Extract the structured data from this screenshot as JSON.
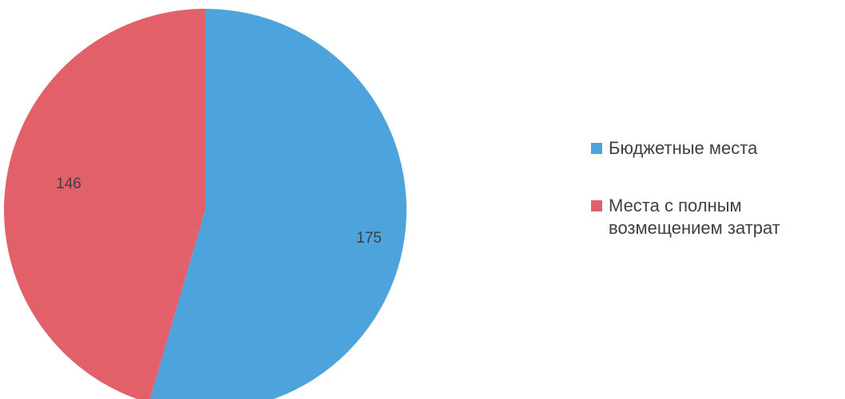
{
  "chart_data": {
    "type": "pie",
    "slices": [
      {
        "name": "Бюджетные места",
        "value": 175,
        "label": "175",
        "color": "#4da3dc"
      },
      {
        "name": "Места с полным возмещением затрат",
        "value": 146,
        "label": "146",
        "color": "#e2606a"
      }
    ],
    "legend_position": "right"
  },
  "legend": {
    "items": [
      {
        "label": "Бюджетные места",
        "color": "#4da3dc"
      },
      {
        "label": "Места с полным возмещением затрат",
        "color": "#e2606a"
      }
    ]
  }
}
